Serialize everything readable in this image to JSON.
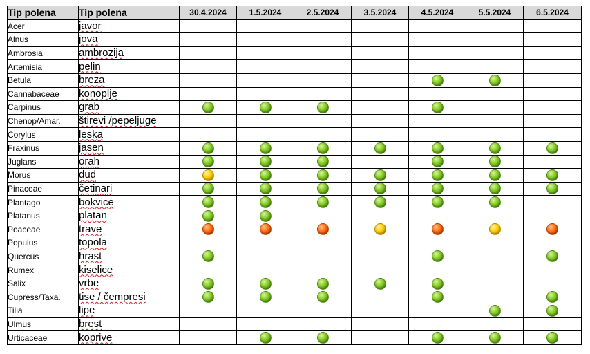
{
  "header": {
    "col1": "Tip polena",
    "col2": "Tip polena",
    "dates": [
      "30.4.2024",
      "1.5.2024",
      "2.5.2024",
      "3.5.2024",
      "4.5.2024",
      "5.5.2024",
      "6.5.2024"
    ]
  },
  "legend_colors": {
    "green": "#6fbf1f",
    "yellow": "#ffcc00",
    "orange": "#ff6a10"
  },
  "rows": [
    {
      "latin": "Acer",
      "local": "javor",
      "levels": [
        "",
        "",
        "",
        "",
        "",
        "",
        ""
      ]
    },
    {
      "latin": "Alnus",
      "local": "jova",
      "levels": [
        "",
        "",
        "",
        "",
        "",
        "",
        ""
      ]
    },
    {
      "latin": "Ambrosia",
      "local": "ambrozija",
      "levels": [
        "",
        "",
        "",
        "",
        "",
        "",
        ""
      ]
    },
    {
      "latin": "Artemisia",
      "local": "pelin",
      "levels": [
        "",
        "",
        "",
        "",
        "",
        "",
        ""
      ]
    },
    {
      "latin": "Betula",
      "local": "breza",
      "levels": [
        "",
        "",
        "",
        "",
        "green",
        "green",
        ""
      ]
    },
    {
      "latin": "Cannabaceae",
      "local": "konoplje",
      "levels": [
        "",
        "",
        "",
        "",
        "",
        "",
        ""
      ]
    },
    {
      "latin": "Carpinus",
      "local": "grab",
      "levels": [
        "green",
        "green",
        "green",
        "",
        "green",
        "",
        ""
      ]
    },
    {
      "latin": "Chenop/Amar.",
      "local": "štirevi /pepeljuge",
      "levels": [
        "",
        "",
        "",
        "",
        "",
        "",
        ""
      ]
    },
    {
      "latin": "Corylus",
      "local": "leska",
      "levels": [
        "",
        "",
        "",
        "",
        "",
        "",
        ""
      ]
    },
    {
      "latin": "Fraxinus",
      "local": "jasen",
      "levels": [
        "green",
        "green",
        "green",
        "green",
        "green",
        "green",
        "green"
      ]
    },
    {
      "latin": "Juglans",
      "local": "orah",
      "levels": [
        "green",
        "green",
        "green",
        "",
        "green",
        "green",
        ""
      ]
    },
    {
      "latin": "Morus",
      "local": "dud",
      "levels": [
        "yellow",
        "green",
        "green",
        "green",
        "green",
        "green",
        "green"
      ]
    },
    {
      "latin": "Pinaceae",
      "local": "četinari",
      "levels": [
        "green",
        "green",
        "green",
        "green",
        "green",
        "green",
        "green"
      ]
    },
    {
      "latin": "Plantago",
      "local": "bokvice",
      "levels": [
        "green",
        "green",
        "green",
        "green",
        "green",
        "green",
        ""
      ]
    },
    {
      "latin": "Platanus",
      "local": "platan",
      "levels": [
        "green",
        "green",
        "",
        "",
        "",
        "",
        ""
      ]
    },
    {
      "latin": "Poaceae",
      "local": "trave",
      "levels": [
        "orange",
        "orange",
        "orange",
        "yellow",
        "orange",
        "yellow",
        "orange"
      ]
    },
    {
      "latin": "Populus",
      "local": "topola",
      "levels": [
        "",
        "",
        "",
        "",
        "",
        "",
        ""
      ]
    },
    {
      "latin": "Quercus",
      "local": "hrast",
      "levels": [
        "green",
        "",
        "",
        "",
        "green",
        "",
        "green"
      ]
    },
    {
      "latin": "Rumex",
      "local": "kiselice",
      "levels": [
        "",
        "",
        "",
        "",
        "",
        "",
        ""
      ]
    },
    {
      "latin": "Salix",
      "local": "vrbe",
      "levels": [
        "green",
        "green",
        "green",
        "green",
        "green",
        "",
        ""
      ]
    },
    {
      "latin": "Cupress/Taxa.",
      "local": "tise / čempresi",
      "levels": [
        "green",
        "green",
        "green",
        "",
        "green",
        "",
        "green"
      ]
    },
    {
      "latin": "Tilia",
      "local": "lipe",
      "levels": [
        "",
        "",
        "",
        "",
        "",
        "green",
        "green"
      ]
    },
    {
      "latin": "Ulmus",
      "local": "brest",
      "levels": [
        "",
        "",
        "",
        "",
        "",
        "",
        ""
      ]
    },
    {
      "latin": "Urticaceae",
      "local": "koprive",
      "levels": [
        "",
        "green",
        "green",
        "",
        "green",
        "green",
        "green"
      ]
    }
  ]
}
